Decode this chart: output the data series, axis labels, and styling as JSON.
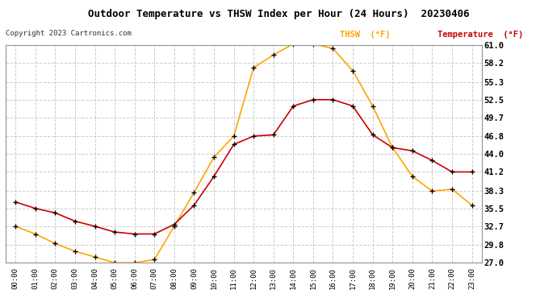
{
  "title": "Outdoor Temperature vs THSW Index per Hour (24 Hours)  20230406",
  "copyright": "Copyright 2023 Cartronics.com",
  "background_color": "#ffffff",
  "grid_color": "#cccccc",
  "hours": [
    "00:00",
    "01:00",
    "02:00",
    "03:00",
    "04:00",
    "05:00",
    "06:00",
    "07:00",
    "08:00",
    "09:00",
    "10:00",
    "11:00",
    "12:00",
    "13:00",
    "14:00",
    "15:00",
    "16:00",
    "17:00",
    "18:00",
    "19:00",
    "20:00",
    "21:00",
    "22:00",
    "23:00"
  ],
  "thsw": [
    32.7,
    31.5,
    30.0,
    28.8,
    27.9,
    27.0,
    27.0,
    27.5,
    32.7,
    38.0,
    43.5,
    46.8,
    57.5,
    59.5,
    61.2,
    61.2,
    60.5,
    57.0,
    51.5,
    45.0,
    40.5,
    38.2,
    38.5,
    36.0
  ],
  "temperature": [
    36.5,
    35.5,
    34.8,
    33.5,
    32.7,
    31.8,
    31.5,
    31.5,
    33.0,
    36.0,
    40.5,
    45.5,
    46.8,
    47.0,
    51.5,
    52.5,
    52.5,
    51.5,
    47.0,
    45.0,
    44.5,
    43.0,
    41.2,
    41.2
  ],
  "thsw_color": "#FFA500",
  "temperature_color": "#CC0000",
  "marker_color": "#000000",
  "ylim_min": 27.0,
  "ylim_max": 61.0,
  "yticks": [
    27.0,
    29.8,
    32.7,
    35.5,
    38.3,
    41.2,
    44.0,
    46.8,
    49.7,
    52.5,
    55.3,
    58.2,
    61.0
  ],
  "legend_thsw": "THSW  (°F)",
  "legend_temp": "Temperature  (°F)"
}
